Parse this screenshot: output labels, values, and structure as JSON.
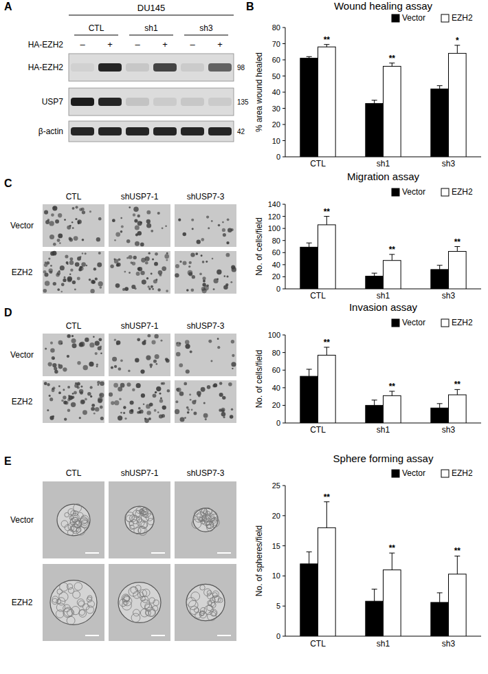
{
  "panel_labels": [
    "A",
    "B",
    "C",
    "D",
    "E"
  ],
  "blot": {
    "title": "DU145",
    "groups": [
      "CTL",
      "sh1",
      "sh3"
    ],
    "treatment": {
      "label": "HA-EZH2",
      "signs": [
        "–",
        "+",
        "–",
        "+",
        "–",
        "+"
      ]
    },
    "rows": [
      {
        "label": "HA-EZH2",
        "mw": 98,
        "intensity": [
          0.05,
          0.9,
          0.1,
          0.75,
          0.08,
          0.6
        ]
      },
      {
        "label": "USP7",
        "mw": 135,
        "intensity": [
          0.95,
          0.9,
          0.12,
          0.08,
          0.1,
          0.08
        ]
      },
      {
        "label": "β-actin",
        "mw": 42,
        "intensity": [
          0.9,
          0.9,
          0.9,
          0.9,
          0.9,
          0.9
        ]
      }
    ]
  },
  "image_panels": [
    {
      "type": "transwell",
      "columns": [
        "CTL",
        "shUSP7-1",
        "shUSP7-3"
      ],
      "rows": [
        "Vector",
        "EZH2"
      ]
    },
    {
      "type": "transwell",
      "columns": [
        "CTL",
        "shUSP7-1",
        "shUSP7-3"
      ],
      "rows": [
        "Vector",
        "EZH2"
      ]
    },
    {
      "type": "sphere",
      "columns": [
        "CTL",
        "shUSP7-1",
        "shUSP7-3"
      ],
      "rows": [
        "Vector",
        "EZH2"
      ]
    }
  ],
  "chart_data": [
    {
      "type": "bar",
      "title": "Wound healing assay",
      "ylabel": "% area wound healed",
      "categories": [
        "CTL",
        "sh1",
        "sh3"
      ],
      "series": [
        {
          "name": "Vector",
          "color": "#000000",
          "values": [
            61,
            33,
            42
          ],
          "errors": [
            1,
            2,
            2
          ]
        },
        {
          "name": "EZH2",
          "color": "#ffffff",
          "values": [
            68,
            56,
            64
          ],
          "errors": [
            1.5,
            2,
            5
          ]
        }
      ],
      "ylim": [
        0,
        80
      ],
      "yticks": [
        0,
        10,
        20,
        30,
        40,
        50,
        60,
        70,
        80
      ],
      "annotations": [
        "**",
        "**",
        "*"
      ],
      "legend": "top-right"
    },
    {
      "type": "bar",
      "title": "Migration assay",
      "ylabel": "No. of cells/field",
      "categories": [
        "CTL",
        "sh1",
        "sh3"
      ],
      "series": [
        {
          "name": "Vector",
          "color": "#000000",
          "values": [
            69,
            21,
            32
          ],
          "errors": [
            7,
            5,
            7
          ]
        },
        {
          "name": "EZH2",
          "color": "#ffffff",
          "values": [
            106,
            47,
            62
          ],
          "errors": [
            14,
            10,
            8
          ]
        }
      ],
      "ylim": [
        0,
        140
      ],
      "yticks": [
        0,
        20,
        40,
        60,
        80,
        100,
        120,
        140
      ],
      "annotations": [
        "**",
        "**",
        "**"
      ],
      "legend": "top-right"
    },
    {
      "type": "bar",
      "title": "Invasion assay",
      "ylabel": "No. of cells/field",
      "categories": [
        "CTL",
        "sh1",
        "sh3"
      ],
      "series": [
        {
          "name": "Vector",
          "color": "#000000",
          "values": [
            53,
            20,
            17
          ],
          "errors": [
            8,
            6,
            5
          ]
        },
        {
          "name": "EZH2",
          "color": "#ffffff",
          "values": [
            77,
            31,
            32
          ],
          "errors": [
            9,
            5,
            6
          ]
        }
      ],
      "ylim": [
        0,
        100
      ],
      "yticks": [
        0,
        20,
        40,
        60,
        80,
        100
      ],
      "annotations": [
        "**",
        "**",
        "**"
      ],
      "legend": "top-right"
    },
    {
      "type": "bar",
      "title": "Sphere forming assay",
      "ylabel": "No. of spheres/field",
      "categories": [
        "CTL",
        "sh1",
        "sh3"
      ],
      "series": [
        {
          "name": "Vector",
          "color": "#000000",
          "values": [
            12,
            5.8,
            5.6
          ],
          "errors": [
            2,
            2,
            1.6
          ]
        },
        {
          "name": "EZH2",
          "color": "#ffffff",
          "values": [
            18,
            11,
            10.3
          ],
          "errors": [
            4.3,
            2.8,
            3
          ]
        }
      ],
      "ylim": [
        0,
        25
      ],
      "yticks": [
        0,
        5,
        10,
        15,
        20,
        25
      ],
      "annotations": [
        "**",
        "**",
        "**"
      ],
      "legend": "top-right"
    }
  ]
}
